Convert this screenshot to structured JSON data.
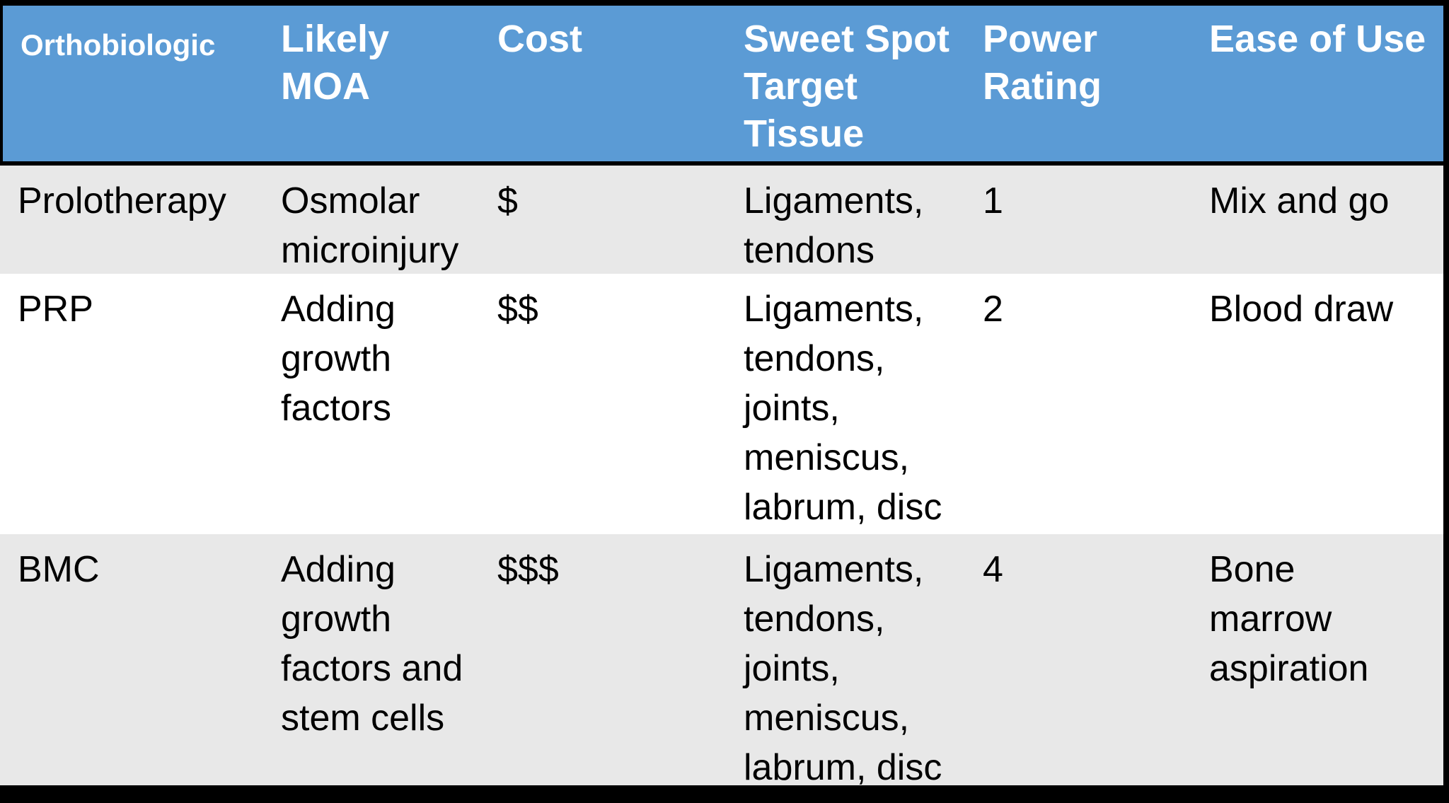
{
  "table": {
    "columns": [
      "Orthobiologic",
      "Likely\nMOA",
      "Cost",
      "Sweet Spot\nTarget\nTissue",
      "Power\nRating",
      "Ease of Use"
    ],
    "rows": [
      {
        "cells": [
          "Prolotherapy",
          "Osmolar\nmicroinjury",
          "$",
          "Ligaments,\ntendons",
          "1",
          "Mix and go"
        ]
      },
      {
        "cells": [
          "PRP",
          "Adding\ngrowth\nfactors",
          "$$",
          "Ligaments,\ntendons,\njoints,\nmeniscus,\nlabrum, disc",
          "2",
          "Blood draw"
        ]
      },
      {
        "cells": [
          "BMC",
          "Adding\ngrowth\nfactors and\nstem cells",
          "$$$",
          "Ligaments,\ntendons,\njoints,\nmeniscus,\nlabrum, disc",
          "4",
          "Bone\nmarrow\naspiration"
        ]
      }
    ],
    "colors": {
      "header_bg": "#5B9BD5",
      "header_text": "#FFFFFF",
      "row_alt_bg": "#E8E8E8",
      "row_bg": "#FFFFFF",
      "body_text": "#000000",
      "border": "#000000"
    }
  }
}
